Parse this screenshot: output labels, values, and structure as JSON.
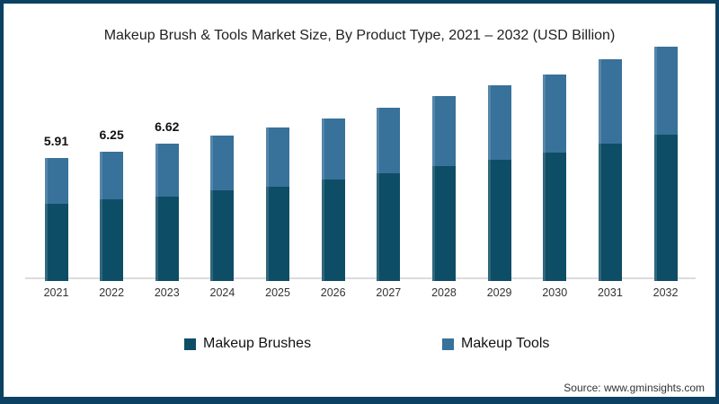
{
  "chart_data": {
    "type": "bar",
    "stacked": true,
    "title": "Makeup Brush & Tools Market Size, By Product Type, 2021 – 2032 (USD Billion)",
    "categories": [
      "2021",
      "2022",
      "2023",
      "2024",
      "2025",
      "2026",
      "2027",
      "2028",
      "2029",
      "2030",
      "2031",
      "2032"
    ],
    "series": [
      {
        "name": "Makeup Brushes",
        "color": "#0e4d66",
        "values": [
          3.72,
          3.94,
          4.07,
          4.37,
          4.55,
          4.89,
          5.19,
          5.54,
          5.84,
          6.19,
          6.62,
          7.06
        ]
      },
      {
        "name": "Makeup Tools",
        "color": "#38719a",
        "values": [
          2.19,
          2.31,
          2.55,
          2.64,
          2.85,
          2.95,
          3.16,
          3.38,
          3.6,
          3.77,
          4.07,
          4.24
        ]
      }
    ],
    "totals": [
      5.91,
      6.25,
      6.62,
      7.01,
      7.4,
      7.84,
      8.35,
      8.92,
      9.44,
      9.96,
      10.69,
      11.3
    ],
    "bar_total_labels": [
      "5.91",
      "6.25",
      "6.62",
      "",
      "",
      "",
      "",
      "",
      "",
      "",
      "",
      ""
    ],
    "xlabel": "",
    "ylabel": "",
    "ylim": [
      0,
      12
    ],
    "grid": false,
    "legend_position": "bottom"
  },
  "source": "Source: www.gminsights.com",
  "colors": {
    "frame_border": "#0c4164",
    "axis_line": "#dcdcdc",
    "background": "#ffffff",
    "makeup_brushes": "#0e4d66",
    "makeup_tools": "#38719a"
  }
}
